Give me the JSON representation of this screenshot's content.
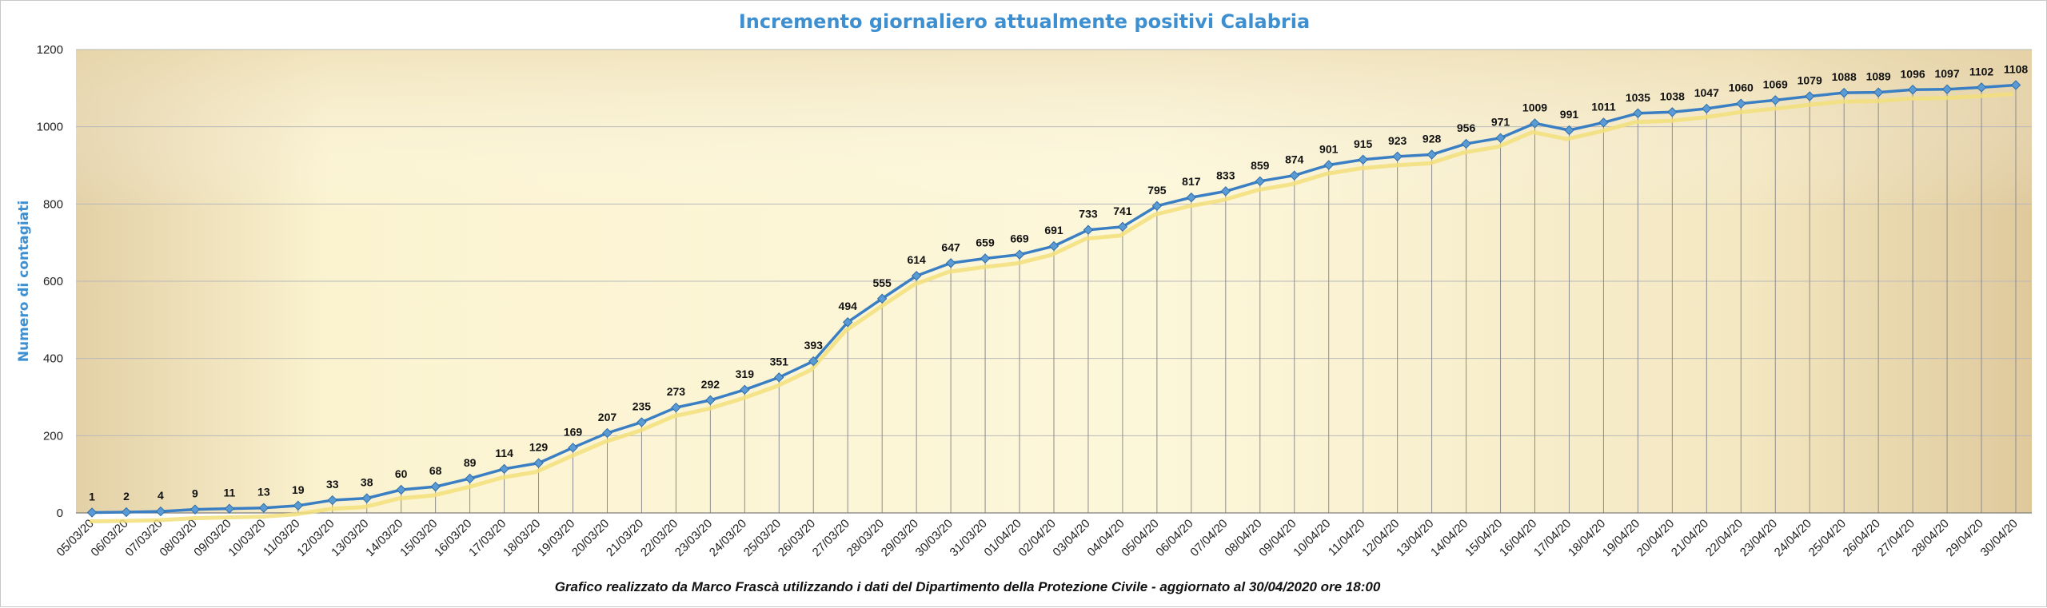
{
  "chart_data": {
    "type": "line",
    "title": "Incremento giornaliero attualmente positivi Calabria",
    "ylabel": "Numero di contagiati",
    "xlabel": "",
    "ylim": [
      0,
      1200
    ],
    "yticks": [
      0,
      200,
      400,
      600,
      800,
      1000,
      1200
    ],
    "grid": true,
    "legend": "none",
    "categories": [
      "05/03/20",
      "06/03/20",
      "07/03/20",
      "08/03/20",
      "09/03/20",
      "10/03/20",
      "11/03/20",
      "12/03/20",
      "13/03/20",
      "14/03/20",
      "15/03/20",
      "16/03/20",
      "17/03/20",
      "18/03/20",
      "19/03/20",
      "20/03/20",
      "21/03/20",
      "22/03/20",
      "23/03/20",
      "24/03/20",
      "25/03/20",
      "26/03/20",
      "27/03/20",
      "28/03/20",
      "29/03/20",
      "30/03/20",
      "31/03/20",
      "01/04/20",
      "02/04/20",
      "03/04/20",
      "04/04/20",
      "05/04/20",
      "06/04/20",
      "07/04/20",
      "08/04/20",
      "09/04/20",
      "10/04/20",
      "11/04/20",
      "12/04/20",
      "13/04/20",
      "14/04/20",
      "15/04/20",
      "16/04/20",
      "17/04/20",
      "18/04/20",
      "19/04/20",
      "20/04/20",
      "21/04/20",
      "22/04/20",
      "23/04/20",
      "24/04/20",
      "25/04/20",
      "26/04/20",
      "27/04/20",
      "28/04/20",
      "29/04/20",
      "30/04/20"
    ],
    "values": [
      1,
      2,
      4,
      9,
      11,
      13,
      19,
      33,
      38,
      60,
      68,
      89,
      114,
      129,
      169,
      207,
      235,
      273,
      292,
      319,
      351,
      393,
      494,
      555,
      614,
      647,
      659,
      669,
      691,
      733,
      741,
      795,
      817,
      833,
      859,
      874,
      901,
      915,
      923,
      928,
      956,
      971,
      1009,
      991,
      1011,
      1035,
      1038,
      1047,
      1060,
      1069,
      1079,
      1088,
      1089,
      1096,
      1097,
      1102,
      1108
    ],
    "colors": {
      "line": "#3a7fc4",
      "marker": "#5b9bd5",
      "shadow": "#f2df7a",
      "drop_line": "#8c8c8c",
      "grid": "#b9b9b9",
      "title": "#3e8fd0"
    }
  },
  "footer": "Grafico  realizzato da Marco Frascà  utilizzando i dati del Dipartimento  della Protezione Civile  - aggiornato al 30/04/2020 ore 18:00"
}
